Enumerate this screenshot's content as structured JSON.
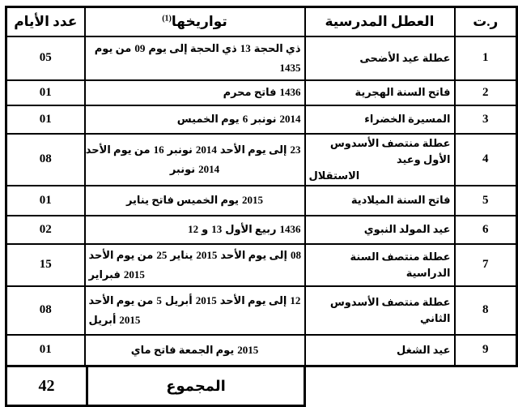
{
  "page": {
    "background_color": "#ffffff",
    "border_color": "#000000",
    "text_color": "#000000"
  },
  "table": {
    "headers": {
      "days": "عدد الأيام",
      "dates": "تواريخها",
      "dates_footnote": "(1)",
      "holiday": "العطل المدرسية",
      "num": "ر.ت"
    },
    "rows": [
      {
        "num": "1",
        "holiday": "عطلة عيد الأضحى",
        "date_lines": [
          [
            "من يوم",
            "09",
            "ذي الحجة إلى يوم",
            "13",
            "ذي الحجة"
          ],
          [
            "1435"
          ]
        ],
        "days": "05",
        "align": "right",
        "align2": "right"
      },
      {
        "num": "2",
        "holiday": "فاتح السنة الهجرية",
        "date_lines": [
          [
            "فاتح محرم",
            "1436"
          ]
        ],
        "days": "01",
        "align": "right"
      },
      {
        "num": "3",
        "holiday": "المسيرة الخضراء",
        "date_lines": [
          [
            "يوم الخميس",
            "6",
            "نونبر",
            "2014"
          ]
        ],
        "days": "01",
        "align": "right"
      },
      {
        "num": "4",
        "holiday": "عطلة منتصف الأسدوس الأول وعيد\nالاستقلال",
        "holiday_last_align": "left",
        "date_lines": [
          [
            "من يوم الأحد",
            "16",
            "نونبر",
            "2014",
            "إلى يوم الأحد",
            "23"
          ],
          [
            "نونبر",
            "2014"
          ]
        ],
        "days": "08",
        "align": "right",
        "align2": "center"
      },
      {
        "num": "5",
        "holiday": "فاتح السنة الميلادية",
        "date_lines": [
          [
            "يوم الخميس فاتح يناير",
            "2015"
          ]
        ],
        "days": "01",
        "align": "center"
      },
      {
        "num": "6",
        "holiday": "عيد المولد النبوي",
        "date_lines": [
          [
            "12",
            "و",
            "13",
            "ربيع الأول",
            "1436"
          ]
        ],
        "days": "02",
        "align": "right"
      },
      {
        "num": "7",
        "holiday": "عطلة منتصف السنة الدراسية",
        "date_lines": [
          [
            "من يوم الأحد",
            "25",
            "يناير",
            "2015",
            "إلى يوم الأحد",
            "08"
          ],
          [
            "فبراير",
            "2015"
          ]
        ],
        "days": "15",
        "align": "left",
        "align2": "left"
      },
      {
        "num": "8",
        "holiday": "عطلة منتصف الأسدوس الثاني",
        "date_lines": [
          [
            "من يوم الأحد",
            "5",
            "أبريل",
            "2015",
            "إلى يوم الأحد",
            "12"
          ],
          [
            "أبريل",
            "2015"
          ]
        ],
        "days": "08",
        "align": "left",
        "align2": "left"
      },
      {
        "num": "9",
        "holiday": "عيد الشغل",
        "date_lines": [
          [
            "يوم الجمعة فاتح ماي",
            "2015"
          ]
        ],
        "days": "01",
        "align": "center"
      }
    ],
    "total": {
      "label": "المجموع",
      "days": "42"
    }
  }
}
